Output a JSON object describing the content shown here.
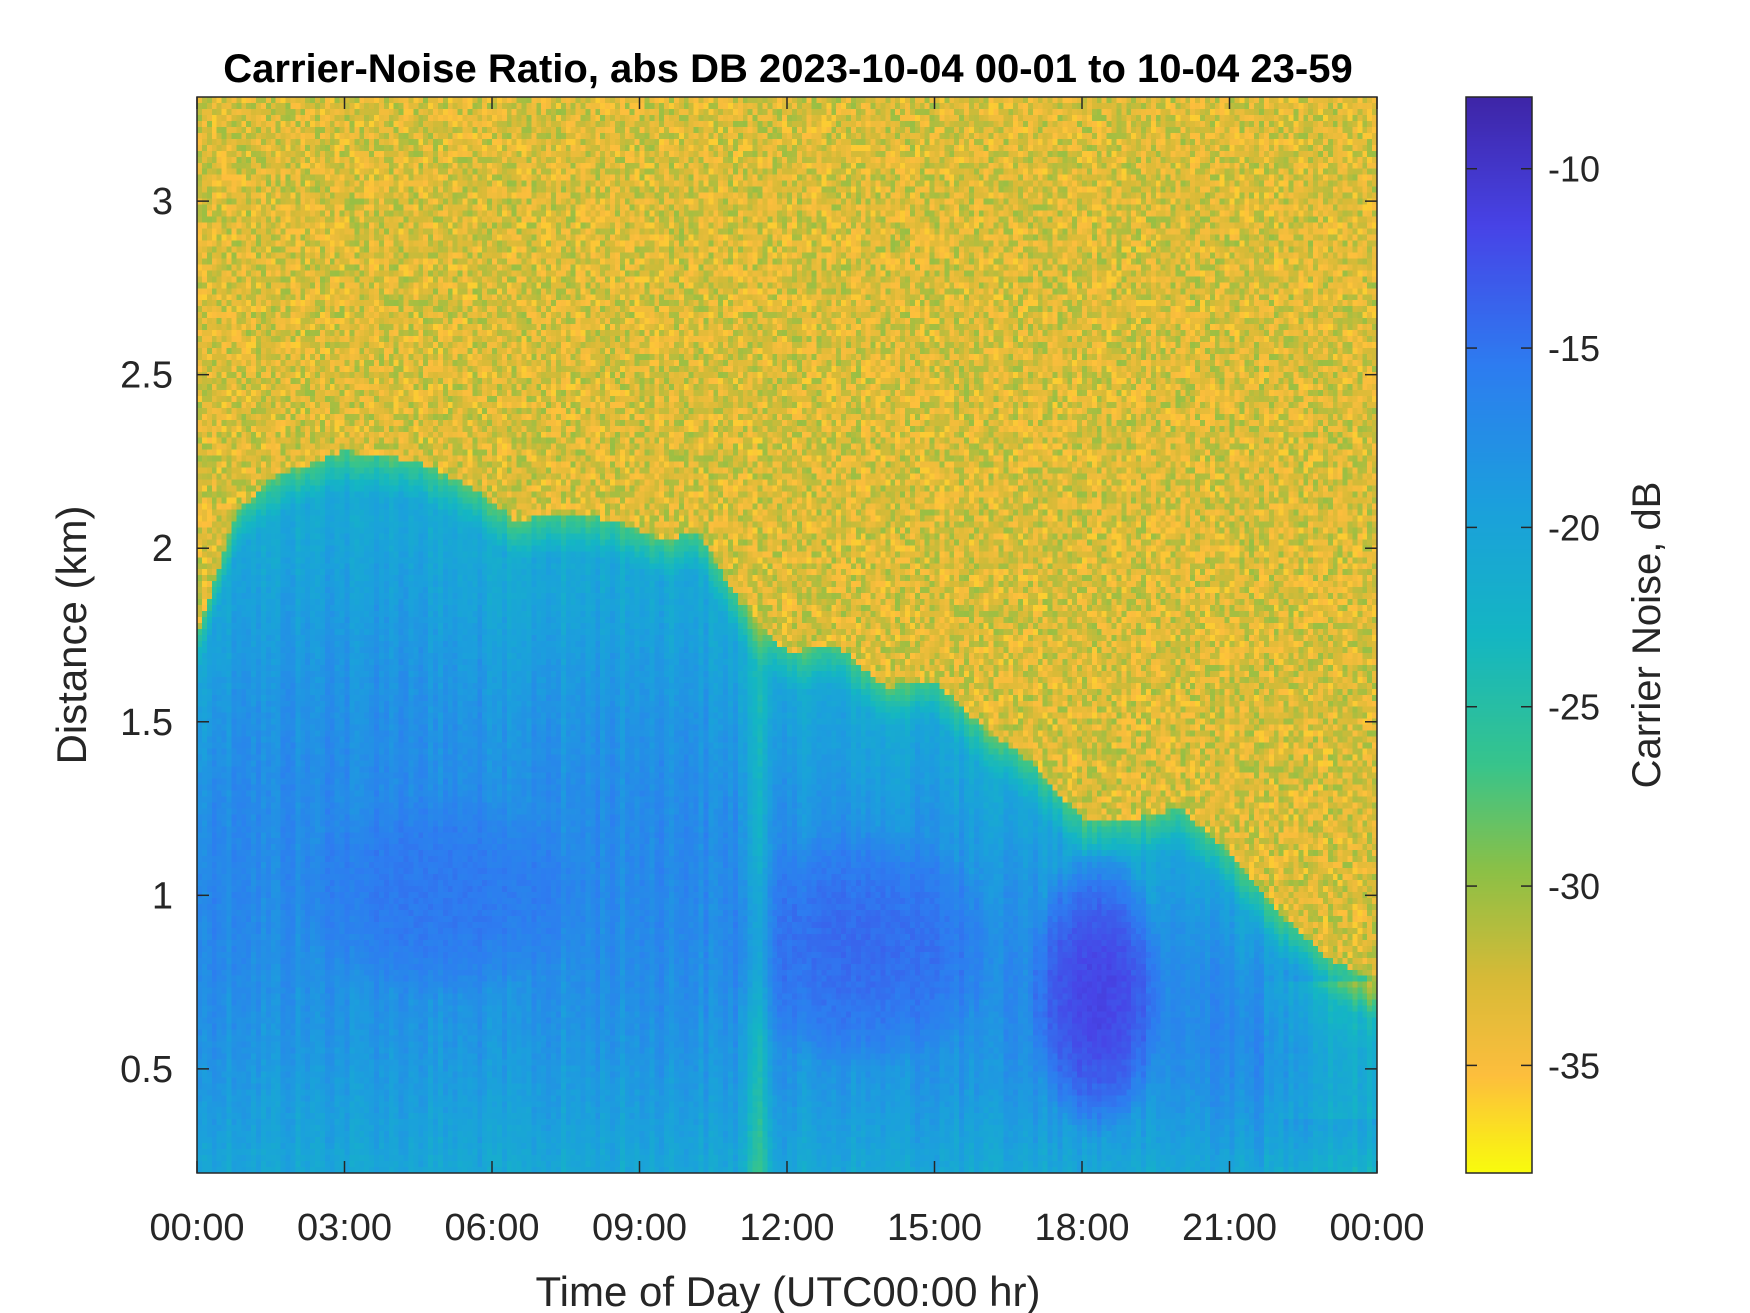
{
  "chart_data": {
    "type": "heatmap",
    "title": "Carrier-Noise Ratio, abs DB 2023-10-04 00-01 to 10-04 23-59",
    "xlabel": "Time of Day (UTC00:00 hr)",
    "ylabel": "Distance (km)",
    "colorbar_label": "Carrier Noise, dB",
    "x_tick_labels": [
      "00:00",
      "03:00",
      "06:00",
      "09:00",
      "12:00",
      "15:00",
      "18:00",
      "21:00",
      "00:00"
    ],
    "x_tick_hours": [
      0,
      3,
      6,
      9,
      12,
      15,
      18,
      21,
      24
    ],
    "xlim_hours": [
      0,
      24
    ],
    "y_tick_labels": [
      "0.5",
      "1",
      "1.5",
      "2",
      "2.5",
      "3"
    ],
    "y_ticks": [
      0.5,
      1,
      1.5,
      2,
      2.5,
      3
    ],
    "ylim": [
      0.2,
      3.3
    ],
    "colorbar_tick_labels": [
      "-10",
      "-15",
      "-20",
      "-25",
      "-30",
      "-35"
    ],
    "colorbar_ticks": [
      -10,
      -15,
      -20,
      -25,
      -30,
      -35
    ],
    "clim": [
      -38,
      -8
    ],
    "colormap": "parula",
    "colors": {
      "background_noise": "#F0BA3C",
      "low_signal": "#1FB4C8",
      "mid_signal": "#2F8AE8",
      "strong_signal": "#3A2FA8",
      "axis": "#262626"
    },
    "grid": false,
    "boundary_top_km": {
      "hours": [
        0,
        0.8,
        1.5,
        3,
        4.5,
        5.5,
        6.5,
        7.5,
        8.5,
        9.5,
        10.2,
        11,
        12,
        13,
        14,
        15,
        16,
        17,
        18,
        19,
        20,
        21,
        22,
        23,
        24
      ],
      "km": [
        1.75,
        2.1,
        2.2,
        2.28,
        2.25,
        2.18,
        2.08,
        2.1,
        2.08,
        2.02,
        2.05,
        1.85,
        1.7,
        1.72,
        1.6,
        1.62,
        1.48,
        1.38,
        1.22,
        1.22,
        1.25,
        1.12,
        0.95,
        0.82,
        0.75
      ]
    },
    "strong_signal_regions": [
      {
        "label": "",
        "hours_center": 18.3,
        "km_center": 0.72,
        "hours_halfwidth": 1.4,
        "km_halfwidth": 0.42,
        "db": -11
      },
      {
        "label": "",
        "hours_center": 13.5,
        "km_center": 0.85,
        "hours_halfwidth": 2.8,
        "km_halfwidth": 0.35,
        "db": -14
      },
      {
        "label": "",
        "hours_center": 5.0,
        "km_center": 1.0,
        "hours_halfwidth": 3.0,
        "km_halfwidth": 0.3,
        "db": -15
      }
    ],
    "clear_air_band_hours": [
      11.0,
      11.8
    ]
  }
}
